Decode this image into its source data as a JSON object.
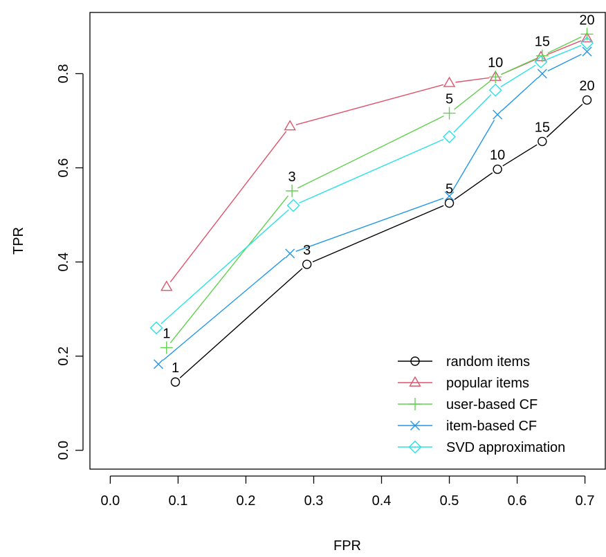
{
  "chart_data": {
    "type": "line",
    "title": "",
    "xlabel": "FPR",
    "ylabel": "TPR",
    "xlim": [
      -0.03,
      0.73
    ],
    "ylim": [
      -0.04,
      0.93
    ],
    "xticks": [
      "0.0",
      "0.1",
      "0.2",
      "0.3",
      "0.4",
      "0.5",
      "0.6",
      "0.7"
    ],
    "yticks": [
      "0.0",
      "0.2",
      "0.4",
      "0.6",
      "0.8"
    ],
    "grid": false,
    "legend_position": "bottom-right",
    "series": [
      {
        "name": "random items",
        "color": "#000000",
        "marker": "circle",
        "x": [
          0.096,
          0.29,
          0.5,
          0.571,
          0.637,
          0.703
        ],
        "y": [
          0.145,
          0.395,
          0.525,
          0.597,
          0.656,
          0.744
        ],
        "labels": [
          "1",
          "3",
          "5",
          "10",
          "15",
          "20"
        ]
      },
      {
        "name": "popular items",
        "color": "#DF536B",
        "marker": "triangle",
        "x": [
          0.083,
          0.265,
          0.5,
          0.568,
          0.635,
          0.703
        ],
        "y": [
          0.347,
          0.688,
          0.78,
          0.793,
          0.835,
          0.875
        ],
        "labels": []
      },
      {
        "name": "user-based CF",
        "color": "#61D04F",
        "marker": "plus",
        "x": [
          0.083,
          0.268,
          0.5,
          0.568,
          0.637,
          0.703
        ],
        "y": [
          0.218,
          0.551,
          0.716,
          0.793,
          0.838,
          0.884
        ],
        "labels": [
          "1",
          "3",
          "5",
          "10",
          "15",
          "20"
        ]
      },
      {
        "name": "item-based CF",
        "color": "#2297E6",
        "marker": "cross",
        "x": [
          0.071,
          0.265,
          0.5,
          0.571,
          0.637,
          0.703
        ],
        "y": [
          0.183,
          0.418,
          0.54,
          0.713,
          0.8,
          0.847
        ],
        "labels": []
      },
      {
        "name": "SVD approximation",
        "color": "#28E2E5",
        "marker": "diamond",
        "x": [
          0.068,
          0.27,
          0.5,
          0.568,
          0.635,
          0.703
        ],
        "y": [
          0.26,
          0.52,
          0.666,
          0.765,
          0.825,
          0.865
        ],
        "labels": []
      }
    ]
  }
}
